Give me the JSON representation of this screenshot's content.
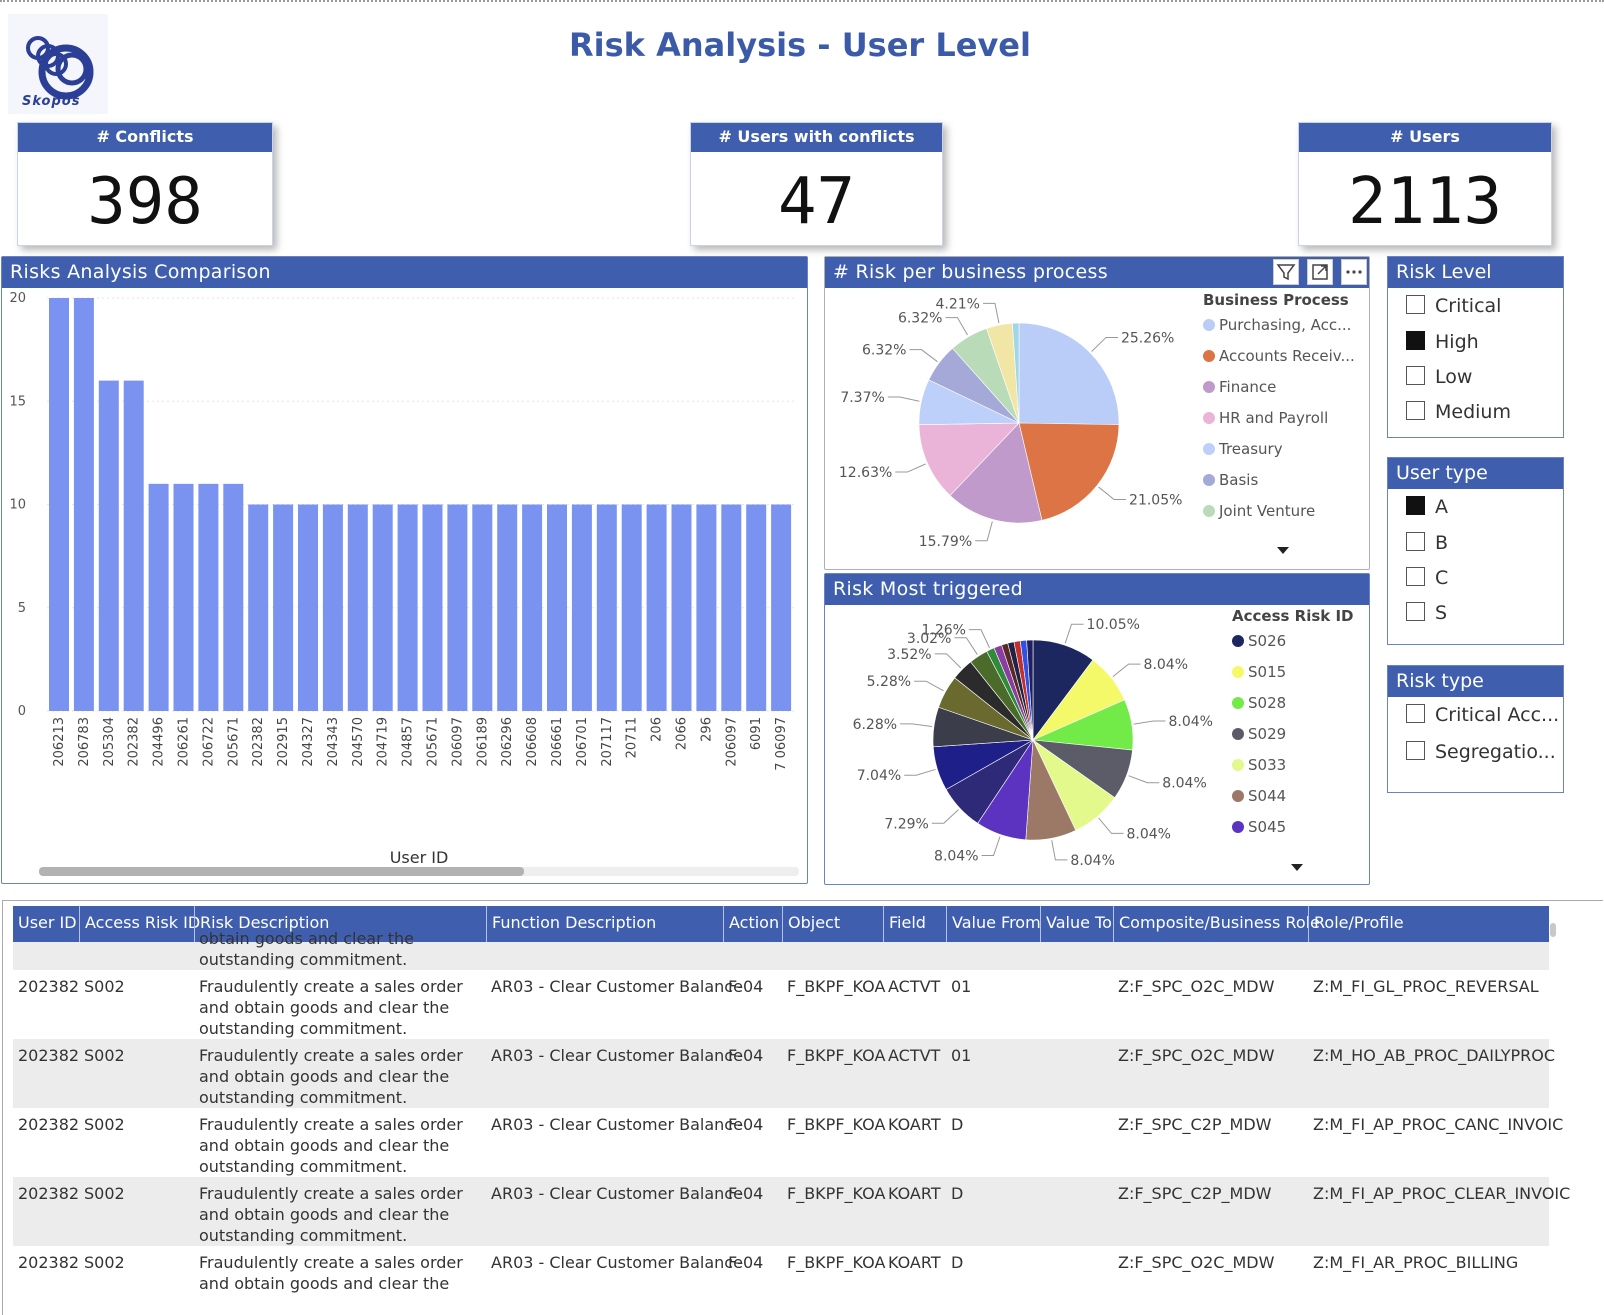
{
  "brand": {
    "logo_text": "Skopos"
  },
  "page": {
    "title": "Risk Analysis - User Level"
  },
  "kpis": [
    {
      "label": "# Conflicts",
      "value": "398"
    },
    {
      "label": "# Users with conflicts",
      "value": "47"
    },
    {
      "label": "# Users",
      "value": "2113"
    }
  ],
  "colors": {
    "accent": "#3f5fae",
    "bar": "#7b93f0"
  },
  "bar_panel": {
    "title": "Risks Analysis Comparison"
  },
  "pie1_panel": {
    "title": "# Risk per business process",
    "legend_title": "Business Process",
    "legend": [
      {
        "label": "Purchasing, Acc...",
        "color": "#b9cdf8"
      },
      {
        "label": "Accounts Receiv...",
        "color": "#dc7445"
      },
      {
        "label": "Finance",
        "color": "#c09acb"
      },
      {
        "label": "HR and Payroll",
        "color": "#eab4d9"
      },
      {
        "label": "Treasury",
        "color": "#bcd0f9"
      },
      {
        "label": "Basis",
        "color": "#a5a9d8"
      },
      {
        "label": "Joint Venture",
        "color": "#badbb8"
      }
    ],
    "icons": [
      "filter-icon",
      "focus-mode-icon",
      "more-options-icon",
      "chevron-down-icon"
    ]
  },
  "pie2_panel": {
    "title": "Risk Most triggered",
    "legend_title": "Access Risk ID",
    "legend": [
      {
        "label": "S026",
        "color": "#1c2760"
      },
      {
        "label": "S015",
        "color": "#f4f96a"
      },
      {
        "label": "S028",
        "color": "#72ea47"
      },
      {
        "label": "S029",
        "color": "#5b5c68"
      },
      {
        "label": "S033",
        "color": "#e3f98b"
      },
      {
        "label": "S044",
        "color": "#9c7867"
      },
      {
        "label": "S045",
        "color": "#5c33c0"
      }
    ]
  },
  "slicers": [
    {
      "title": "Risk Level",
      "items": [
        {
          "label": "Critical",
          "checked": false
        },
        {
          "label": "High",
          "checked": true
        },
        {
          "label": "Low",
          "checked": false
        },
        {
          "label": "Medium",
          "checked": false
        }
      ]
    },
    {
      "title": "User type",
      "items": [
        {
          "label": "A",
          "checked": true
        },
        {
          "label": "B",
          "checked": false
        },
        {
          "label": "C",
          "checked": false
        },
        {
          "label": "S",
          "checked": false
        }
      ]
    },
    {
      "title": "Risk type",
      "items": [
        {
          "label": "Critical Acc...",
          "checked": false
        },
        {
          "label": "Segregatio...",
          "checked": false
        }
      ]
    }
  ],
  "table": {
    "columns": [
      "User ID",
      "Access Risk ID",
      "Risk Description",
      "Function Description",
      "Action",
      "Object",
      "Field",
      "Value From",
      "Value To",
      "Composite/Business Role",
      "Role/Profile"
    ],
    "partial_row": {
      "line1": "obtain goods and clear the",
      "line2": "outstanding commitment."
    },
    "rows": [
      {
        "user_id": "202382",
        "risk_id": "S002",
        "risk_desc": "Fraudulently create a sales order and obtain goods and clear the outstanding commitment.",
        "function_desc": "AR03 - Clear Customer Balance",
        "action": "F-04",
        "object": "F_BKPF_KOA",
        "field": "ACTVT",
        "value_from": "01",
        "value_to": "",
        "composite_role": "Z:F_SPC_O2C_MDW",
        "role_profile": "Z:M_FI_GL_PROC_REVERSAL"
      },
      {
        "user_id": "202382",
        "risk_id": "S002",
        "risk_desc": "Fraudulently create a sales order and obtain goods and clear the outstanding commitment.",
        "function_desc": "AR03 - Clear Customer Balance",
        "action": "F-04",
        "object": "F_BKPF_KOA",
        "field": "ACTVT",
        "value_from": "01",
        "value_to": "",
        "composite_role": "Z:F_SPC_O2C_MDW",
        "role_profile": "Z:M_HO_AB_PROC_DAILYPROC"
      },
      {
        "user_id": "202382",
        "risk_id": "S002",
        "risk_desc": "Fraudulently create a sales order and obtain goods and clear the outstanding commitment.",
        "function_desc": "AR03 - Clear Customer Balance",
        "action": "F-04",
        "object": "F_BKPF_KOA",
        "field": "KOART",
        "value_from": "D",
        "value_to": "",
        "composite_role": "Z:F_SPC_C2P_MDW",
        "role_profile": "Z:M_FI_AP_PROC_CANC_INVOIC"
      },
      {
        "user_id": "202382",
        "risk_id": "S002",
        "risk_desc": "Fraudulently create a sales order and obtain goods and clear the outstanding commitment.",
        "function_desc": "AR03 - Clear Customer Balance",
        "action": "F-04",
        "object": "F_BKPF_KOA",
        "field": "KOART",
        "value_from": "D",
        "value_to": "",
        "composite_role": "Z:F_SPC_C2P_MDW",
        "role_profile": "Z:M_FI_AP_PROC_CLEAR_INVOIC"
      },
      {
        "user_id": "202382",
        "risk_id": "S002",
        "risk_desc": "Fraudulently create a sales order and obtain goods and clear the",
        "function_desc": "AR03 - Clear Customer Balance",
        "action": "F-04",
        "object": "F_BKPF_KOA",
        "field": "KOART",
        "value_from": "D",
        "value_to": "",
        "composite_role": "Z:F_SPC_O2C_MDW",
        "role_profile": "Z:M_FI_AR_PROC_BILLING"
      }
    ]
  },
  "chart_data": [
    {
      "type": "bar",
      "title": "Risks Analysis Comparison",
      "xlabel": "User ID",
      "ylabel": "",
      "ylim": [
        0,
        20
      ],
      "yticks": [
        0,
        5,
        10,
        15,
        20
      ],
      "categories": [
        "206213",
        "206783",
        "205304",
        "202382",
        "204496",
        "206261",
        "206722",
        "205671",
        "202382",
        "202915",
        "204327",
        "204343",
        "204570",
        "204719",
        "204857",
        "205671",
        "206097",
        "206189",
        "206296",
        "206608",
        "206661",
        "206701",
        "207117",
        "20711",
        "206",
        "2066",
        "296",
        "206097",
        "6091",
        "7 06097"
      ],
      "values": [
        20,
        20,
        16,
        16,
        11,
        11,
        11,
        11,
        10,
        10,
        10,
        10,
        10,
        10,
        10,
        10,
        10,
        10,
        10,
        10,
        10,
        10,
        10,
        10,
        10,
        10,
        10,
        10,
        10,
        10
      ]
    },
    {
      "type": "pie",
      "title": "# Risk per business process",
      "legend_title": "Business Process",
      "slices": [
        {
          "label": "Purchasing, Acc...",
          "value": 25.26,
          "text": "25.26%",
          "color": "#b9cdf8"
        },
        {
          "label": "Accounts Receiv...",
          "value": 21.05,
          "text": "21.05%",
          "color": "#dc7445"
        },
        {
          "label": "Finance",
          "value": 15.79,
          "text": "15.79%",
          "color": "#c09acb"
        },
        {
          "label": "HR and Payroll",
          "value": 12.63,
          "text": "12.63%",
          "color": "#eab4d9"
        },
        {
          "label": "Treasury",
          "value": 7.37,
          "text": "7.37%",
          "color": "#bcd0f9"
        },
        {
          "label": "Basis",
          "value": 6.32,
          "text": "6.32%",
          "color": "#a5a9d8"
        },
        {
          "label": "Joint Venture",
          "value": 6.32,
          "text": "6.32%",
          "color": "#badbb8"
        },
        {
          "label": "",
          "value": 4.21,
          "text": "4.21%",
          "color": "#f2e6a6"
        },
        {
          "label": "",
          "value": 1.05,
          "text": "",
          "color": "#9fd6e8"
        }
      ]
    },
    {
      "type": "pie",
      "title": "Risk Most triggered",
      "legend_title": "Access Risk ID",
      "slices": [
        {
          "label": "S026",
          "value": 10.05,
          "text": "10.05%",
          "color": "#1c2760"
        },
        {
          "label": "S015",
          "value": 8.04,
          "text": "8.04%",
          "color": "#f4f96a"
        },
        {
          "label": "S028",
          "value": 8.04,
          "text": "8.04%",
          "color": "#72ea47"
        },
        {
          "label": "S029",
          "value": 8.04,
          "text": "8.04%",
          "color": "#5b5c68"
        },
        {
          "label": "S033",
          "value": 8.04,
          "text": "8.04%",
          "color": "#e3f98b"
        },
        {
          "label": "S044",
          "value": 8.04,
          "text": "8.04%",
          "color": "#9c7867"
        },
        {
          "label": "S045",
          "value": 8.04,
          "text": "8.04%",
          "color": "#5c33c0"
        },
        {
          "label": "",
          "value": 7.29,
          "text": "7.29%",
          "color": "#2e2a77"
        },
        {
          "label": "",
          "value": 7.04,
          "text": "7.04%",
          "color": "#1f1f8a"
        },
        {
          "label": "",
          "value": 6.28,
          "text": "6.28%",
          "color": "#3c3d4a"
        },
        {
          "label": "",
          "value": 5.28,
          "text": "5.28%",
          "color": "#6a6a2e"
        },
        {
          "label": "",
          "value": 3.52,
          "text": "3.52%",
          "color": "#2b2b2b"
        },
        {
          "label": "",
          "value": 3.02,
          "text": "3.02%",
          "color": "#4b6b2a"
        },
        {
          "label": "",
          "value": 1.26,
          "text": "1.26%",
          "color": "#2f8a3a"
        },
        {
          "label": "",
          "value": 1.26,
          "text": "",
          "color": "#8a3fa0"
        },
        {
          "label": "",
          "value": 1.0,
          "text": "",
          "color": "#5a2a2a"
        },
        {
          "label": "",
          "value": 1.0,
          "text": "",
          "color": "#222244"
        },
        {
          "label": "",
          "value": 1.0,
          "text": "",
          "color": "#c03030"
        },
        {
          "label": "",
          "value": 1.0,
          "text": "",
          "color": "#3050e0"
        },
        {
          "label": "",
          "value": 1.0,
          "text": "",
          "color": "#202060"
        }
      ]
    }
  ]
}
